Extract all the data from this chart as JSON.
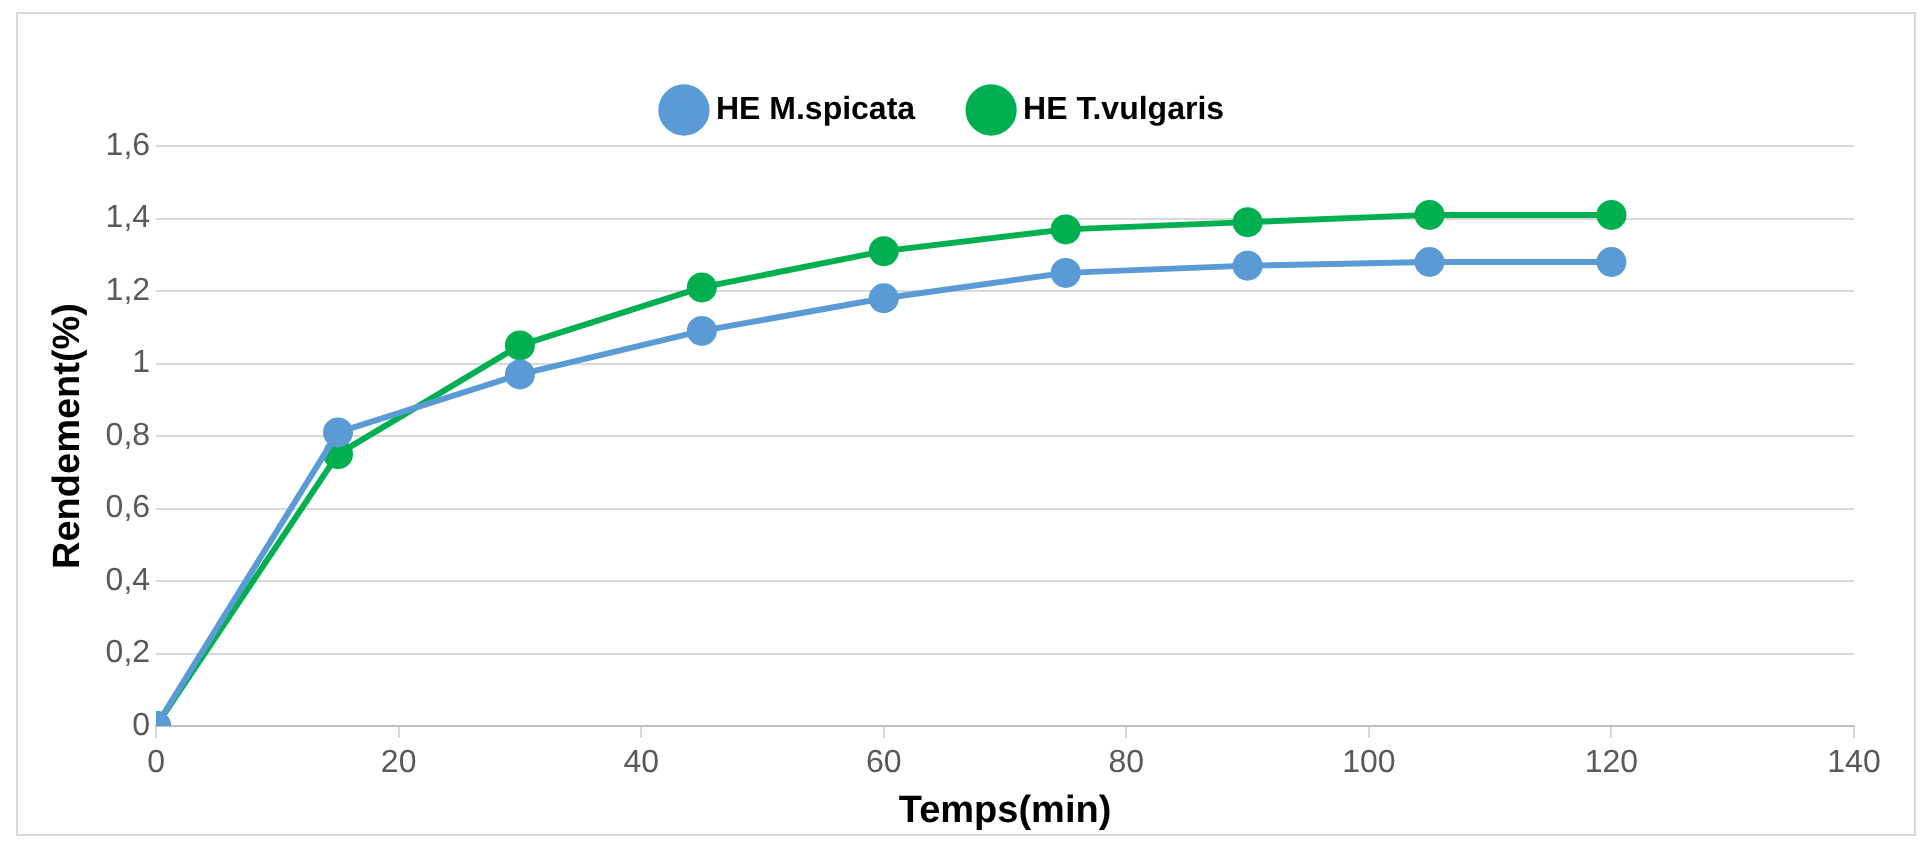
{
  "chart_data": {
    "type": "line",
    "xlabel": "Temps(min)",
    "ylabel": "Rendement(%)",
    "x": [
      0,
      15,
      30,
      45,
      60,
      75,
      90,
      105,
      120
    ],
    "series": [
      {
        "name": "HE M.spicata",
        "color": "#5b9bd5",
        "values": [
          0,
          0.81,
          0.97,
          1.09,
          1.18,
          1.25,
          1.27,
          1.28,
          1.28
        ]
      },
      {
        "name": "HE T.vulgaris",
        "color": "#00b050",
        "values": [
          0,
          0.75,
          1.05,
          1.21,
          1.31,
          1.37,
          1.39,
          1.41,
          1.41
        ]
      }
    ],
    "xlim": [
      0,
      140
    ],
    "xticks": [
      0,
      20,
      40,
      60,
      80,
      100,
      120,
      140
    ],
    "ylim": [
      0,
      1.6
    ],
    "yticks": [
      0,
      {
        "value": 0.2,
        "label": "0,2"
      },
      {
        "value": 0.4,
        "label": "0,4"
      },
      {
        "value": 0.6,
        "label": "0,6"
      },
      {
        "value": 0.8,
        "label": "0,8"
      },
      1,
      {
        "value": 1.2,
        "label": "1,2"
      },
      {
        "value": 1.4,
        "label": "1,4"
      },
      {
        "value": 1.6,
        "label": "1,6"
      }
    ],
    "grid": "y",
    "legend": "top",
    "marker": "circle",
    "line_style": "solid"
  }
}
